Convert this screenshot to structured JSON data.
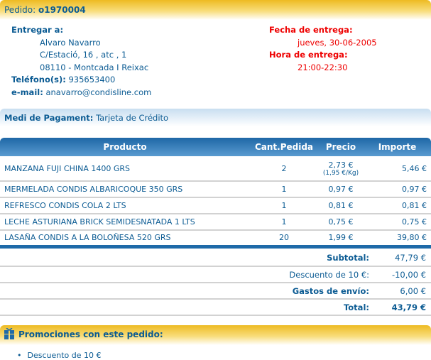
{
  "header": {
    "label": "Pedido:",
    "order_id": "o1970004"
  },
  "delivery_address": {
    "label": "Entregar a:",
    "name": "Alvaro Navarro",
    "street": "C/Estació, 16 , atc , 1",
    "city": "08110 - Montcada I Reixac",
    "phone_label": "Teléfono(s):",
    "phone": "935653400",
    "email_label": "e-mail:",
    "email": "anavarro@condisline.com"
  },
  "delivery_time": {
    "date_label": "Fecha de entrega:",
    "date": "jueves, 30-06-2005",
    "hour_label": "Hora de entrega:",
    "hour": "21:00-22:30"
  },
  "payment": {
    "label": "Medi de Pagament:",
    "value": "Tarjeta de Crédito"
  },
  "table": {
    "headers": [
      "Producto",
      "Cant.Pedida",
      "Precio",
      "Importe"
    ],
    "rows": [
      {
        "product": "MANZANA FUJI CHINA 1400 GRS",
        "qty": "2",
        "price": "2,73 €",
        "unit_price": "(1,95 €/Kg)",
        "amount": "5,46 €"
      },
      {
        "product": "MERMELADA CONDIS ALBARICOQUE 350 GRS",
        "qty": "1",
        "price": "0,97 €",
        "amount": "0,97 €"
      },
      {
        "product": "REFRESCO CONDIS COLA 2 LTS",
        "qty": "1",
        "price": "0,81 €",
        "amount": "0,81 €"
      },
      {
        "product": "LECHE ASTURIANA BRICK SEMIDESNATADA 1 LTS",
        "qty": "1",
        "price": "0,75 €",
        "amount": "0,75 €"
      },
      {
        "product": "LASAÑA CONDIS A LA BOLOÑESA 520 GRS",
        "qty": "20",
        "price": "1,99 €",
        "amount": "39,80 €"
      }
    ]
  },
  "summary": {
    "subtotal_label": "Subtotal:",
    "subtotal": "47,79 €",
    "discount_label": "Descuento de 10 €:",
    "discount": "-10,00 €",
    "shipping_label": "Gastos de envío:",
    "shipping": "6,00 €",
    "total_label": "Total:",
    "total": "43,79 €"
  },
  "promotions": {
    "title": "Promociones con este pedido:",
    "items": [
      "Descuento de 10 €"
    ],
    "icon": "gift-icon"
  },
  "colors": {
    "text": "#0b5b93",
    "accent_red": "#e00000",
    "header_yellow": "#eebb22",
    "table_blue": "#1e6aa8"
  }
}
